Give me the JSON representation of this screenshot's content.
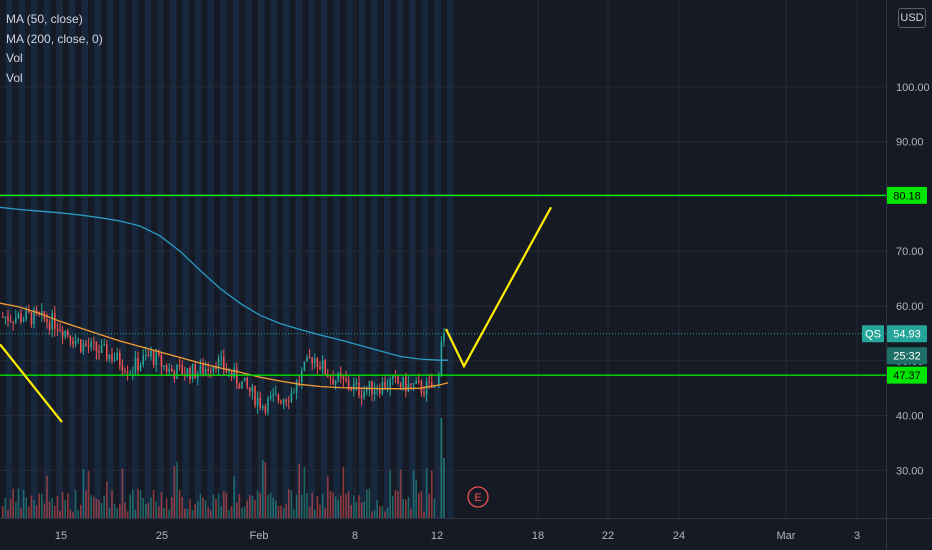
{
  "legend": {
    "items": [
      "MA (50, close)",
      "MA (200, close, 0)",
      "Vol",
      "Vol"
    ]
  },
  "currency": "USD",
  "earnings_marker": "E",
  "colors": {
    "background": "#161a25",
    "grid": "#242a36",
    "session_band": "#1a3353",
    "up": "#26a69a",
    "down": "#ef5350",
    "ma50": "#f59c35",
    "ma200": "#2a9dc4",
    "hline": "#00e600",
    "projection": "#ffee00",
    "price_tag": "#26a69a"
  },
  "chart_data": {
    "type": "candlestick",
    "x_ticks": [
      "15",
      "25",
      "Feb",
      "8",
      "12",
      "18",
      "22",
      "24",
      "Mar",
      "3"
    ],
    "y_ticks": [
      "30.00",
      "40.00",
      "50.00",
      "60.00",
      "70.00",
      "80.00",
      "90.00",
      "100.00"
    ],
    "ylim": [
      22,
      112
    ],
    "horizontal_levels": [
      {
        "label": "80.18",
        "value": 80.18
      },
      {
        "label": "47.37",
        "value": 47.37
      }
    ],
    "last_price": {
      "symbol": "QS",
      "value": 54.93,
      "label": "54.93",
      "countdown": "25:32"
    },
    "ma50": [
      [
        0,
        60.5
      ],
      [
        20,
        59.8
      ],
      [
        40,
        58.6
      ],
      [
        60,
        57.2
      ],
      [
        80,
        56.0
      ],
      [
        100,
        54.8
      ],
      [
        120,
        53.6
      ],
      [
        140,
        52.6
      ],
      [
        160,
        51.6
      ],
      [
        180,
        50.6
      ],
      [
        200,
        49.6
      ],
      [
        220,
        48.7
      ],
      [
        240,
        47.9
      ],
      [
        260,
        47.0
      ],
      [
        280,
        46.3
      ],
      [
        300,
        45.7
      ],
      [
        320,
        45.3
      ],
      [
        340,
        45.1
      ],
      [
        360,
        45.0
      ],
      [
        380,
        44.9
      ],
      [
        400,
        44.9
      ],
      [
        420,
        45.0
      ],
      [
        440,
        45.6
      ],
      [
        448,
        46.0
      ]
    ],
    "ma200": [
      [
        0,
        78.0
      ],
      [
        20,
        77.6
      ],
      [
        40,
        77.3
      ],
      [
        60,
        77.0
      ],
      [
        80,
        76.6
      ],
      [
        100,
        76.1
      ],
      [
        120,
        75.5
      ],
      [
        140,
        74.6
      ],
      [
        160,
        72.8
      ],
      [
        180,
        70.0
      ],
      [
        200,
        66.5
      ],
      [
        220,
        63.2
      ],
      [
        240,
        60.5
      ],
      [
        260,
        58.3
      ],
      [
        280,
        56.8
      ],
      [
        300,
        55.7
      ],
      [
        320,
        54.7
      ],
      [
        340,
        53.8
      ],
      [
        360,
        52.8
      ],
      [
        380,
        51.8
      ],
      [
        400,
        50.8
      ],
      [
        420,
        50.3
      ],
      [
        440,
        50.1
      ],
      [
        448,
        50.1
      ]
    ],
    "projections": [
      {
        "points": [
          [
            0,
            53.0
          ],
          [
            62,
            38.8
          ]
        ]
      },
      {
        "points": [
          [
            446,
            55.8
          ],
          [
            464,
            49.0
          ],
          [
            551,
            78.0
          ]
        ]
      }
    ]
  }
}
